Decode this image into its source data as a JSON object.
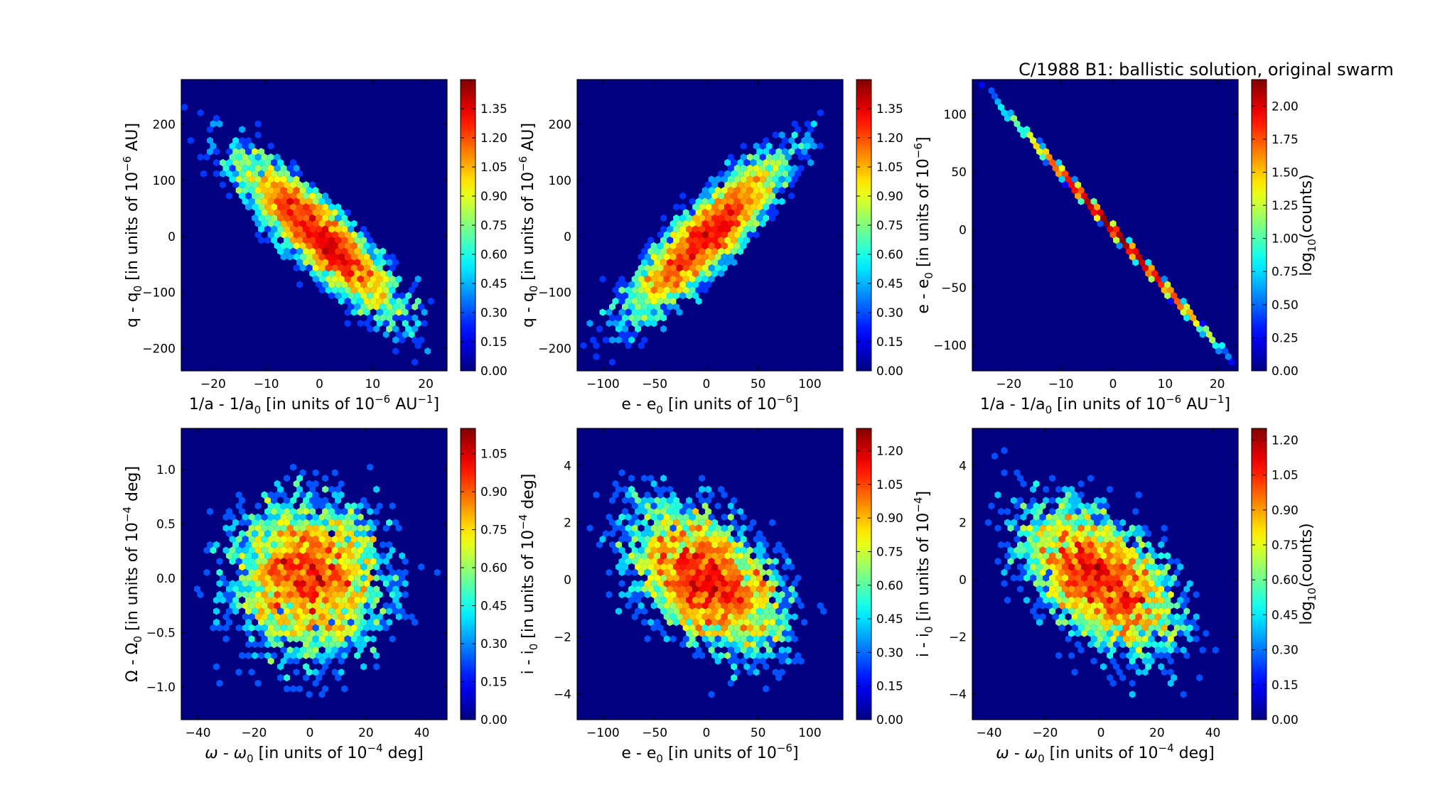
{
  "figure_title": "C/1988 B1:  ballistic solution, original swarm",
  "colorbar_label": {
    "base": "log",
    "sub": "10",
    "rest": "(counts)"
  },
  "chart_data": [
    {
      "type": "heatmap",
      "x": {
        "min": -26,
        "max": 24,
        "ticks": [
          -20,
          -10,
          0,
          10,
          20
        ]
      },
      "y": {
        "min": -240,
        "max": 280,
        "ticks": [
          -200,
          -100,
          0,
          100,
          200
        ]
      },
      "xlabel": [
        {
          "t": "1/a - 1/a"
        },
        {
          "t": "0",
          "sub": true
        },
        {
          "t": " [in units of 10"
        },
        {
          "t": "−6",
          "sup": true
        },
        {
          "t": " AU"
        },
        {
          "t": "−1",
          "sup": true
        },
        {
          "t": "]"
        }
      ],
      "ylabel": [
        {
          "t": "q - q"
        },
        {
          "t": "0",
          "sub": true
        },
        {
          "t": " [in units of 10"
        },
        {
          "t": "−6",
          "sup": true
        },
        {
          "t": " AU]"
        }
      ],
      "colorbar": {
        "max": 1.5,
        "ticks": [
          0.0,
          0.15,
          0.3,
          0.45,
          0.6,
          0.75,
          0.9,
          1.05,
          1.2,
          1.35
        ],
        "labeled": false
      },
      "model": {
        "kind": "gauss",
        "sx": 8,
        "sy": 75,
        "rho": -0.87,
        "n": 5000,
        "cell": 1.0,
        "peak": 1.42
      },
      "seed": 11
    },
    {
      "type": "heatmap",
      "x": {
        "min": -125,
        "max": 132,
        "ticks": [
          -100,
          -50,
          0,
          50,
          100
        ]
      },
      "y": {
        "min": -240,
        "max": 280,
        "ticks": [
          -200,
          -100,
          0,
          100,
          200
        ]
      },
      "xlabel": [
        {
          "t": "e - e"
        },
        {
          "t": "0",
          "sub": true
        },
        {
          "t": " [in units of 10"
        },
        {
          "t": "−6",
          "sup": true
        },
        {
          "t": "]"
        }
      ],
      "ylabel": [
        {
          "t": "q - q"
        },
        {
          "t": "0",
          "sub": true
        },
        {
          "t": " [in units of 10"
        },
        {
          "t": "−6",
          "sup": true
        },
        {
          "t": " AU]"
        }
      ],
      "colorbar": {
        "max": 1.5,
        "ticks": [
          0.0,
          0.15,
          0.3,
          0.45,
          0.6,
          0.75,
          0.9,
          1.05,
          1.2,
          1.35
        ],
        "labeled": false
      },
      "model": {
        "kind": "gauss",
        "sx": 40,
        "sy": 75,
        "rho": 0.87,
        "n": 5000,
        "cell": 1.0,
        "peak": 1.42
      },
      "seed": 23
    },
    {
      "type": "heatmap",
      "x": {
        "min": -27,
        "max": 24,
        "ticks": [
          -20,
          -10,
          0,
          10,
          20
        ]
      },
      "y": {
        "min": -122,
        "max": 130,
        "ticks": [
          -100,
          -50,
          0,
          50,
          100
        ]
      },
      "xlabel": [
        {
          "t": "1/a - 1/a"
        },
        {
          "t": "0",
          "sub": true
        },
        {
          "t": " [in units of 10"
        },
        {
          "t": "−6",
          "sup": true
        },
        {
          "t": " AU"
        },
        {
          "t": "−1",
          "sup": true
        },
        {
          "t": "]"
        }
      ],
      "ylabel": [
        {
          "t": "e - e"
        },
        {
          "t": "0",
          "sub": true
        },
        {
          "t": " [in units of 10"
        },
        {
          "t": "−6",
          "sup": true
        },
        {
          "t": "]"
        }
      ],
      "colorbar": {
        "max": 2.2,
        "ticks": [
          0.0,
          0.25,
          0.5,
          0.75,
          1.0,
          1.25,
          1.5,
          1.75,
          2.0
        ],
        "labeled": true
      },
      "model": {
        "kind": "line",
        "slope": -5.0,
        "sx": 8,
        "n": 5000,
        "peak": 2.2
      },
      "seed": 37
    },
    {
      "type": "heatmap",
      "x": {
        "min": -46,
        "max": 49,
        "ticks": [
          -40,
          -20,
          0,
          20,
          40
        ]
      },
      "y": {
        "min": -1.3,
        "max": 1.38,
        "ticks": [
          -1.0,
          -0.5,
          0.0,
          0.5,
          1.0
        ]
      },
      "xlabel": [
        {
          "t": "ω - ω",
          "i": true
        },
        {
          "t": "0",
          "sub": true
        },
        {
          "t": " [in units of 10"
        },
        {
          "t": "−4",
          "sup": true
        },
        {
          "t": " deg]"
        }
      ],
      "ylabel": [
        {
          "t": "Ω - Ω"
        },
        {
          "t": "0",
          "sub": true
        },
        {
          "t": " [in units of 10"
        },
        {
          "t": "−4",
          "sup": true
        },
        {
          "t": " deg]"
        }
      ],
      "colorbar": {
        "max": 1.15,
        "ticks": [
          0.0,
          0.15,
          0.3,
          0.45,
          0.6,
          0.75,
          0.9,
          1.05
        ],
        "labeled": false
      },
      "model": {
        "kind": "gauss",
        "sx": 15,
        "sy": 0.4,
        "rho": 0.0,
        "n": 5000,
        "cell": 1.0,
        "peak": 1.12
      },
      "seed": 53
    },
    {
      "type": "heatmap",
      "x": {
        "min": -125,
        "max": 132,
        "ticks": [
          -100,
          -50,
          0,
          50,
          100
        ]
      },
      "y": {
        "min": -4.9,
        "max": 5.3,
        "ticks": [
          -4,
          -2,
          0,
          2,
          4
        ]
      },
      "xlabel": [
        {
          "t": "e - e"
        },
        {
          "t": "0",
          "sub": true
        },
        {
          "t": " [in units of 10"
        },
        {
          "t": "−6",
          "sup": true
        },
        {
          "t": "]"
        }
      ],
      "ylabel": [
        {
          "t": "i - i"
        },
        {
          "t": "0",
          "sub": true
        },
        {
          "t": " [in units of 10"
        },
        {
          "t": "−4",
          "sup": true
        },
        {
          "t": " deg]"
        }
      ],
      "colorbar": {
        "max": 1.3,
        "ticks": [
          0.0,
          0.15,
          0.3,
          0.45,
          0.6,
          0.75,
          0.9,
          1.05,
          1.2
        ],
        "labeled": false
      },
      "model": {
        "kind": "gauss",
        "sx": 40,
        "sy": 1.4,
        "rho": -0.45,
        "n": 5000,
        "cell": 1.0,
        "peak": 1.25
      },
      "seed": 71
    },
    {
      "type": "heatmap",
      "x": {
        "min": -46,
        "max": 49,
        "ticks": [
          -40,
          -20,
          0,
          20,
          40
        ]
      },
      "y": {
        "min": -4.9,
        "max": 5.3,
        "ticks": [
          -4,
          -2,
          0,
          2,
          4
        ]
      },
      "xlabel": [
        {
          "t": "ω - ω",
          "i": true
        },
        {
          "t": "0",
          "sub": true
        },
        {
          "t": " [in units of 10"
        },
        {
          "t": "−4",
          "sup": true
        },
        {
          "t": " deg]"
        }
      ],
      "ylabel": [
        {
          "t": "i - i"
        },
        {
          "t": "0",
          "sub": true
        },
        {
          "t": " [in units of 10"
        },
        {
          "t": "−4",
          "sup": true
        },
        {
          "t": "]"
        }
      ],
      "colorbar": {
        "max": 1.25,
        "ticks": [
          0.0,
          0.15,
          0.3,
          0.45,
          0.6,
          0.75,
          0.9,
          1.05,
          1.2
        ],
        "labeled": true
      },
      "model": {
        "kind": "gauss",
        "sx": 15,
        "sy": 1.4,
        "rho": -0.5,
        "n": 5000,
        "cell": 1.0,
        "peak": 1.22
      },
      "seed": 89
    }
  ]
}
